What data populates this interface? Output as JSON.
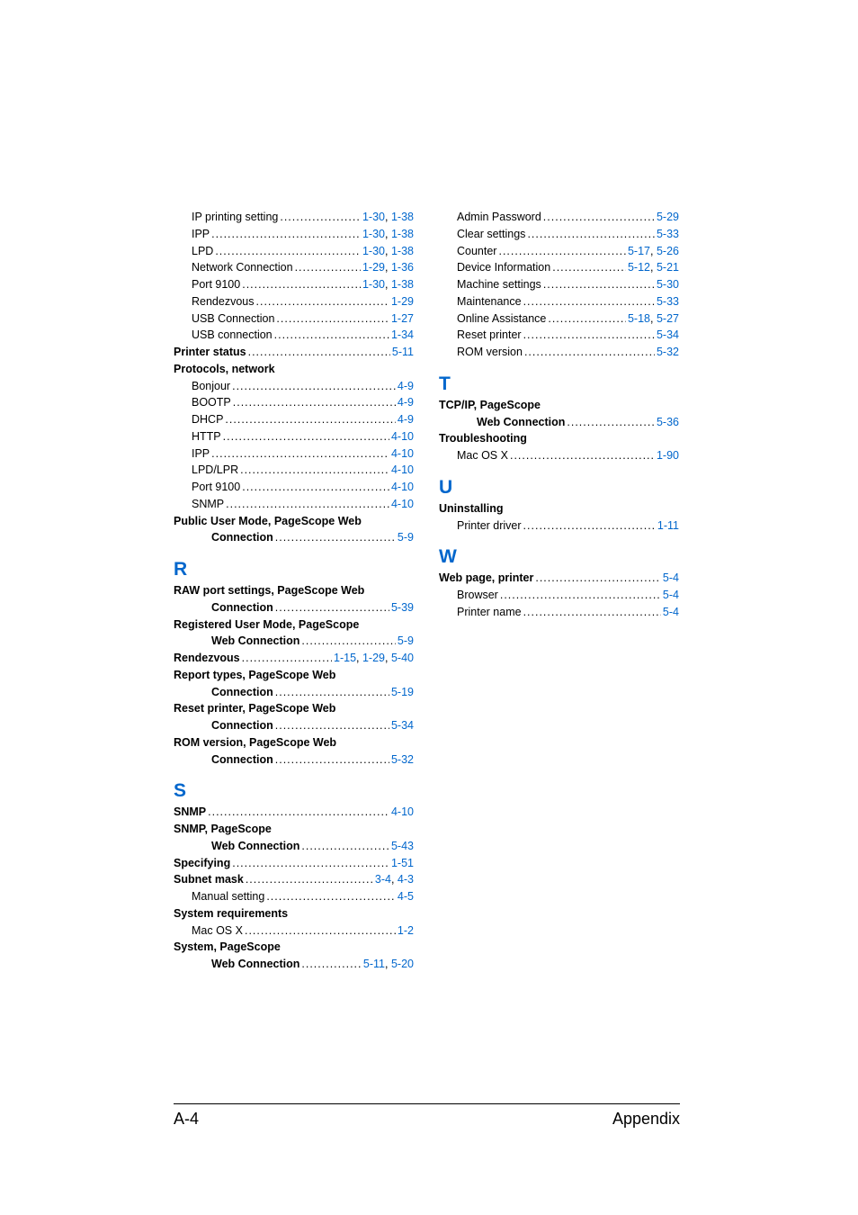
{
  "footer": {
    "left": "A-4",
    "right": "Appendix"
  },
  "letters": {
    "R": "R",
    "S": "S",
    "T": "T",
    "U": "U",
    "W": "W"
  },
  "col1": {
    "top": [
      {
        "label": "IP printing setting",
        "pages": [
          {
            "t": "1-30",
            "l": true
          },
          {
            "t": ", "
          },
          {
            "t": "1-38",
            "l": true
          }
        ],
        "indent": 1
      },
      {
        "label": "IPP",
        "pages": [
          {
            "t": "1-30",
            "l": true
          },
          {
            "t": ", "
          },
          {
            "t": "1-38",
            "l": true
          }
        ],
        "indent": 1
      },
      {
        "label": "LPD",
        "pages": [
          {
            "t": "1-30",
            "l": true
          },
          {
            "t": ", "
          },
          {
            "t": "1-38",
            "l": true
          }
        ],
        "indent": 1
      },
      {
        "label": "Network Connection",
        "pages": [
          {
            "t": "1-29",
            "l": true
          },
          {
            "t": ", "
          },
          {
            "t": "1-36",
            "l": true
          }
        ],
        "indent": 1
      },
      {
        "label": "Port 9100",
        "pages": [
          {
            "t": "1-30",
            "l": true
          },
          {
            "t": ", "
          },
          {
            "t": "1-38",
            "l": true
          }
        ],
        "indent": 1
      },
      {
        "label": "Rendezvous",
        "pages": [
          {
            "t": "1-29",
            "l": true
          }
        ],
        "indent": 1
      },
      {
        "label": "USB Connection",
        "pages": [
          {
            "t": "1-27",
            "l": true
          }
        ],
        "indent": 1
      },
      {
        "label": "USB connection",
        "pages": [
          {
            "t": "1-34",
            "l": true
          }
        ],
        "indent": 1
      },
      {
        "label": "Printer status",
        "bold": true,
        "pages": [
          {
            "t": "5-11",
            "l": true
          }
        ],
        "indent": 0
      },
      {
        "label": "Protocols, network",
        "bold": true,
        "noleader": true,
        "indent": 0
      },
      {
        "label": "Bonjour",
        "pages": [
          {
            "t": "4-9",
            "l": true
          }
        ],
        "indent": 1
      },
      {
        "label": "BOOTP",
        "pages": [
          {
            "t": "4-9",
            "l": true
          }
        ],
        "indent": 1
      },
      {
        "label": "DHCP",
        "pages": [
          {
            "t": "4-9",
            "l": true
          }
        ],
        "indent": 1
      },
      {
        "label": "HTTP",
        "pages": [
          {
            "t": "4-10",
            "l": true
          }
        ],
        "indent": 1
      },
      {
        "label": "IPP",
        "pages": [
          {
            "t": "4-10",
            "l": true
          }
        ],
        "indent": 1
      },
      {
        "label": "LPD/LPR",
        "pages": [
          {
            "t": "4-10",
            "l": true
          }
        ],
        "indent": 1
      },
      {
        "label": "Port 9100",
        "pages": [
          {
            "t": "4-10",
            "l": true
          }
        ],
        "indent": 1
      },
      {
        "label": "SNMP",
        "pages": [
          {
            "t": "4-10",
            "l": true
          }
        ],
        "indent": 1
      },
      {
        "label": "Public User Mode, PageScope Web ",
        "bold": true,
        "noleader": true,
        "indent": 0
      },
      {
        "label": "Connection",
        "bold": true,
        "pages": [
          {
            "t": "5-9",
            "l": true
          }
        ],
        "indent": 2
      }
    ],
    "R": [
      {
        "label": "RAW port settings, PageScope Web ",
        "bold": true,
        "noleader": true,
        "indent": 0
      },
      {
        "label": "Connection",
        "bold": true,
        "pages": [
          {
            "t": "5-39",
            "l": true
          }
        ],
        "indent": 2
      },
      {
        "label": "Registered User Mode, PageScope ",
        "bold": true,
        "noleader": true,
        "indent": 0
      },
      {
        "label": "Web Connection",
        "bold": true,
        "pages": [
          {
            "t": "5-9",
            "l": true
          }
        ],
        "indent": 2
      },
      {
        "label": "Rendezvous",
        "bold": true,
        "pages": [
          {
            "t": " 1-15",
            "l": true
          },
          {
            "t": ", "
          },
          {
            "t": "1-29",
            "l": true
          },
          {
            "t": ", "
          },
          {
            "t": "5-40",
            "l": true
          }
        ],
        "indent": 0
      },
      {
        "label": "Report types, PageScope Web ",
        "bold": true,
        "noleader": true,
        "indent": 0
      },
      {
        "label": "Connection",
        "bold": true,
        "pages": [
          {
            "t": "5-19",
            "l": true
          }
        ],
        "indent": 2
      },
      {
        "label": "Reset printer, PageScope Web ",
        "bold": true,
        "noleader": true,
        "indent": 0
      },
      {
        "label": "Connection",
        "bold": true,
        "pages": [
          {
            "t": "5-34",
            "l": true
          }
        ],
        "indent": 2
      },
      {
        "label": "ROM version, PageScope Web ",
        "bold": true,
        "noleader": true,
        "indent": 0
      },
      {
        "label": "Connection",
        "bold": true,
        "pages": [
          {
            "t": "5-32",
            "l": true
          }
        ],
        "indent": 2
      }
    ],
    "S": [
      {
        "label": "SNMP",
        "bold": true,
        "pages": [
          {
            "t": "4-10",
            "l": true
          }
        ],
        "indent": 0
      },
      {
        "label": "SNMP, PageScope ",
        "bold": true,
        "noleader": true,
        "indent": 0
      },
      {
        "label": "Web Connection",
        "bold": true,
        "pages": [
          {
            "t": "5-43",
            "l": true
          }
        ],
        "indent": 2
      },
      {
        "label": "Specifying",
        "bold": true,
        "pages": [
          {
            "t": "1-51",
            "l": true
          }
        ],
        "indent": 0
      },
      {
        "label": "Subnet mask",
        "bold": true,
        "pages": [
          {
            "t": "3-4",
            "l": true
          },
          {
            "t": ", "
          },
          {
            "t": "4-3",
            "l": true
          }
        ],
        "indent": 0
      },
      {
        "label": "Manual setting",
        "pages": [
          {
            "t": "4-5",
            "l": true
          }
        ],
        "indent": 1
      },
      {
        "label": "System requirements",
        "bold": true,
        "noleader": true,
        "indent": 0
      },
      {
        "label": "Mac OS X",
        "pages": [
          {
            "t": "1-2",
            "l": true
          }
        ],
        "indent": 1
      },
      {
        "label": "System, PageScope ",
        "bold": true,
        "noleader": true,
        "indent": 0
      },
      {
        "label": "Web Connection",
        "bold": true,
        "pages": [
          {
            "t": "5-11",
            "l": true
          },
          {
            "t": ", "
          },
          {
            "t": "5-20",
            "l": true
          }
        ],
        "indent": 2
      }
    ]
  },
  "col2": {
    "top": [
      {
        "label": "Admin Password",
        "pages": [
          {
            "t": " 5-29",
            "l": true
          }
        ],
        "indent": 1
      },
      {
        "label": "Clear settings",
        "pages": [
          {
            "t": " 5-33",
            "l": true
          }
        ],
        "indent": 1
      },
      {
        "label": "Counter",
        "pages": [
          {
            "t": " 5-17",
            "l": true
          },
          {
            "t": ", "
          },
          {
            "t": "5-26",
            "l": true
          }
        ],
        "indent": 1
      },
      {
        "label": "Device Information",
        "pages": [
          {
            "t": " 5-12",
            "l": true
          },
          {
            "t": ", "
          },
          {
            "t": "5-21",
            "l": true
          }
        ],
        "indent": 1
      },
      {
        "label": "Machine settings",
        "pages": [
          {
            "t": " 5-30",
            "l": true
          }
        ],
        "indent": 1
      },
      {
        "label": "Maintenance",
        "pages": [
          {
            "t": " 5-33",
            "l": true
          }
        ],
        "indent": 1
      },
      {
        "label": "Online Assistance",
        "pages": [
          {
            "t": " 5-18",
            "l": true
          },
          {
            "t": ", "
          },
          {
            "t": "5-27",
            "l": true
          }
        ],
        "indent": 1
      },
      {
        "label": "Reset printer",
        "pages": [
          {
            "t": " 5-34",
            "l": true
          }
        ],
        "indent": 1
      },
      {
        "label": "ROM version",
        "pages": [
          {
            "t": " 5-32",
            "l": true
          }
        ],
        "indent": 1
      }
    ],
    "T": [
      {
        "label": "TCP/IP, PageScope ",
        "bold": true,
        "noleader": true,
        "indent": 0
      },
      {
        "label": "Web Connection",
        "bold": true,
        "pages": [
          {
            "t": " 5-36",
            "l": true
          }
        ],
        "indent": 2
      },
      {
        "label": "Troubleshooting",
        "bold": true,
        "noleader": true,
        "indent": 0
      },
      {
        "label": "Mac OS X",
        "pages": [
          {
            "t": " 1-90",
            "l": true
          }
        ],
        "indent": 1
      }
    ],
    "U": [
      {
        "label": "Uninstalling",
        "bold": true,
        "noleader": true,
        "indent": 0
      },
      {
        "label": "Printer driver",
        "pages": [
          {
            "t": " 1-11",
            "l": true
          }
        ],
        "indent": 1
      }
    ],
    "W": [
      {
        "label": "Web page, printer",
        "bold": true,
        "pages": [
          {
            "t": " 5-4",
            "l": true
          }
        ],
        "indent": 0
      },
      {
        "label": "Browser",
        "pages": [
          {
            "t": " 5-4",
            "l": true
          }
        ],
        "indent": 1
      },
      {
        "label": "Printer name",
        "pages": [
          {
            "t": " 5-4",
            "l": true
          }
        ],
        "indent": 1
      }
    ]
  }
}
